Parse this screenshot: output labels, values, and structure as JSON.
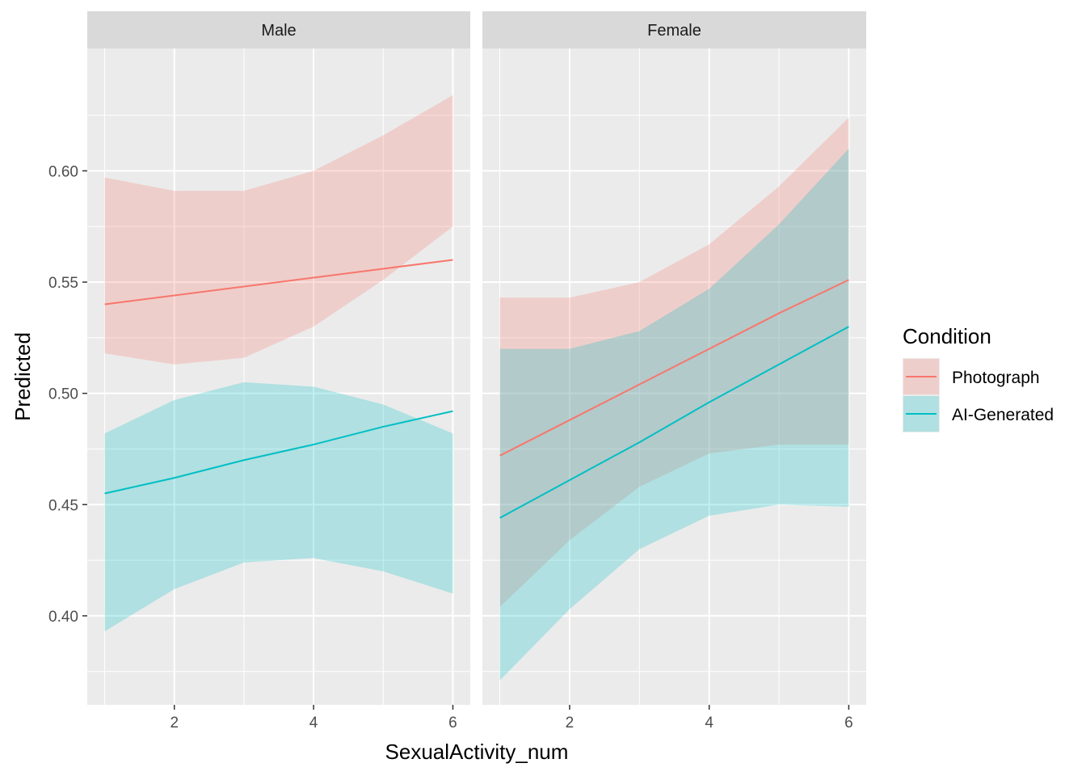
{
  "chart_data": {
    "type": "line",
    "facet_variable": "sex",
    "xlabel": "SexualActivity_num",
    "ylabel": "Predicted",
    "xlim": [
      0.75,
      6.25
    ],
    "ylim": [
      0.36,
      0.655
    ],
    "x_ticks": [
      2,
      4,
      6
    ],
    "x_tick_labels": [
      "2",
      "4",
      "6"
    ],
    "y_ticks": [
      0.4,
      0.45,
      0.5,
      0.55,
      0.6
    ],
    "y_tick_labels": [
      "0.40",
      "0.45",
      "0.50",
      "0.55",
      "0.60"
    ],
    "grid": true,
    "legend": {
      "title": "Condition",
      "position": "right",
      "items": [
        "Photograph",
        "AI-Generated"
      ]
    },
    "colors": {
      "Photograph": "#F8766D",
      "AI-Generated": "#00BFC4",
      "panel_bg": "#EBEBEB",
      "strip_bg": "#D9D9D9",
      "grid": "#FFFFFF"
    },
    "x": [
      1,
      2,
      3,
      4,
      5,
      6
    ],
    "panels": [
      {
        "label": "Male",
        "series": [
          {
            "name": "Photograph",
            "values": [
              0.54,
              0.544,
              0.548,
              0.552,
              0.556,
              0.56
            ],
            "lower": [
              0.518,
              0.513,
              0.516,
              0.53,
              0.551,
              0.575
            ],
            "upper": [
              0.597,
              0.591,
              0.591,
              0.6,
              0.616,
              0.634
            ]
          },
          {
            "name": "AI-Generated",
            "values": [
              0.455,
              0.462,
              0.47,
              0.477,
              0.485,
              0.492
            ],
            "lower": [
              0.393,
              0.412,
              0.424,
              0.426,
              0.42,
              0.41
            ],
            "upper": [
              0.482,
              0.497,
              0.505,
              0.503,
              0.495,
              0.482
            ]
          }
        ]
      },
      {
        "label": "Female",
        "series": [
          {
            "name": "Photograph",
            "values": [
              0.472,
              0.488,
              0.504,
              0.52,
              0.536,
              0.551
            ],
            "lower": [
              0.404,
              0.434,
              0.458,
              0.473,
              0.477,
              0.477
            ],
            "upper": [
              0.543,
              0.543,
              0.55,
              0.567,
              0.593,
              0.624
            ]
          },
          {
            "name": "AI-Generated",
            "values": [
              0.444,
              0.461,
              0.478,
              0.496,
              0.513,
              0.53
            ],
            "lower": [
              0.371,
              0.403,
              0.43,
              0.445,
              0.45,
              0.449
            ],
            "upper": [
              0.52,
              0.52,
              0.528,
              0.547,
              0.576,
              0.61
            ]
          }
        ]
      }
    ]
  }
}
